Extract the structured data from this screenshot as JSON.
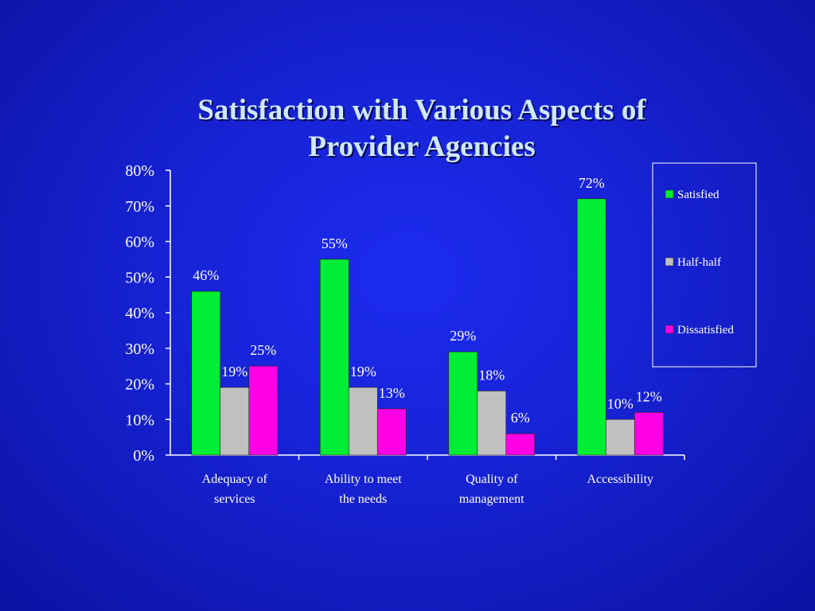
{
  "chart_data": {
    "type": "bar",
    "title_line1": "Satisfaction with Various Aspects of",
    "title_line2": "Provider Agencies",
    "categories": [
      [
        "Adequacy of",
        "services"
      ],
      [
        "Ability to meet",
        "the needs"
      ],
      [
        "Quality of",
        "management"
      ],
      [
        "Accessibility"
      ]
    ],
    "series": [
      {
        "name": "Satisfied",
        "color": "#00ee33",
        "values": [
          46,
          55,
          29,
          72
        ],
        "labels": [
          "46%",
          "55%",
          "29%",
          "72%"
        ]
      },
      {
        "name": "Half-half",
        "color": "#c0c0c0",
        "values": [
          19,
          19,
          18,
          10
        ],
        "labels": [
          "19%",
          "19%",
          "18%",
          "10%"
        ]
      },
      {
        "name": "Dissatisfied",
        "color": "#ff00e6",
        "values": [
          25,
          13,
          6,
          12
        ],
        "labels": [
          "25%",
          "13%",
          "6%",
          "12%"
        ]
      }
    ],
    "ylim": [
      0,
      80
    ],
    "yticks": [
      "0%",
      "10%",
      "20%",
      "30%",
      "40%",
      "50%",
      "60%",
      "70%",
      "80%"
    ],
    "grid": false,
    "legend": "right"
  }
}
